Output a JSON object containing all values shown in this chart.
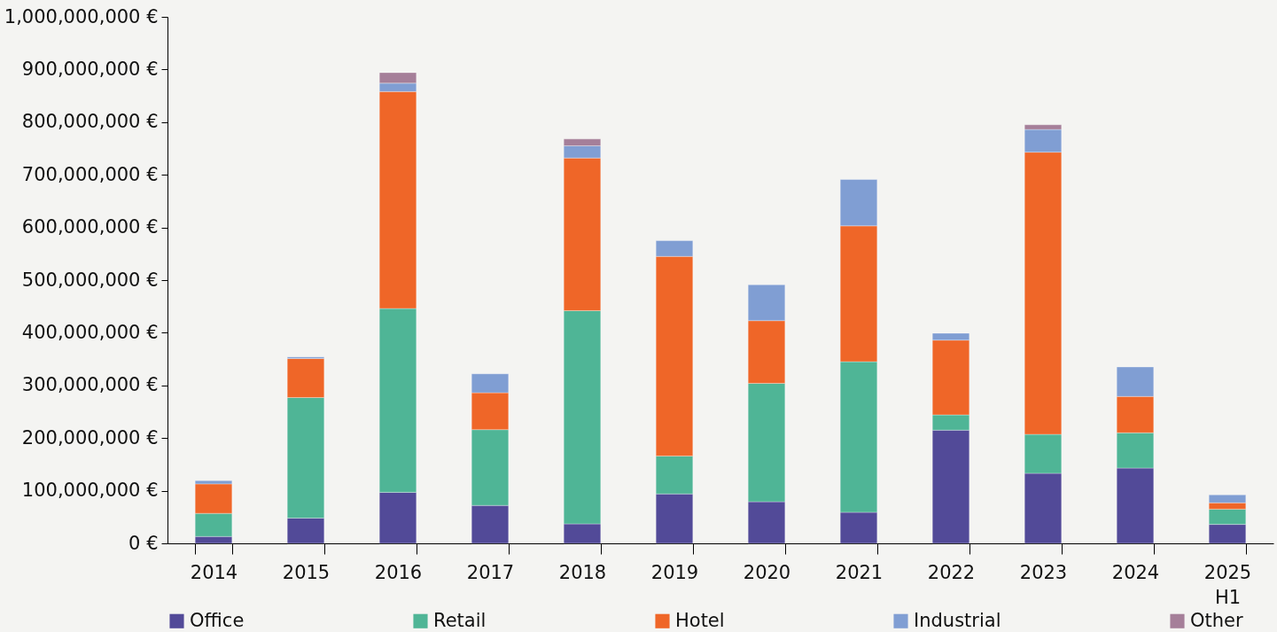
{
  "chart_data": {
    "type": "bar",
    "stacked": true,
    "categories": [
      "2014",
      "2015",
      "2016",
      "2017",
      "2018",
      "2019",
      "2020",
      "2021",
      "2022",
      "2023",
      "2024",
      "2025 H1"
    ],
    "series": [
      {
        "name": "Office",
        "color": "#524a98",
        "values": [
          13000000,
          48000000,
          97000000,
          72000000,
          37000000,
          94000000,
          79000000,
          59000000,
          215000000,
          133000000,
          143000000,
          36000000
        ]
      },
      {
        "name": "Retail",
        "color": "#4fb596",
        "values": [
          44000000,
          229000000,
          349000000,
          144000000,
          405000000,
          72000000,
          225000000,
          286000000,
          29000000,
          74000000,
          67000000,
          29000000
        ]
      },
      {
        "name": "Hotel",
        "color": "#ef6628",
        "values": [
          56000000,
          74000000,
          412000000,
          70000000,
          290000000,
          379000000,
          119000000,
          258000000,
          142000000,
          536000000,
          69000000,
          12000000
        ]
      },
      {
        "name": "Industrial",
        "color": "#809ed3",
        "values": [
          6000000,
          3000000,
          16000000,
          36000000,
          23000000,
          30000000,
          68000000,
          88000000,
          13000000,
          43000000,
          56000000,
          15000000
        ]
      },
      {
        "name": "Other",
        "color": "#a57f99",
        "values": [
          null,
          null,
          20000000,
          null,
          13000000,
          null,
          null,
          null,
          null,
          9000000,
          null,
          null
        ]
      }
    ],
    "ylim": [
      0,
      1000000000
    ],
    "yticks": [
      {
        "value": 0,
        "label": "0 €"
      },
      {
        "value": 100000000,
        "label": "100,000,000 €"
      },
      {
        "value": 200000000,
        "label": "200,000,000 €"
      },
      {
        "value": 300000000,
        "label": "300,000,000 €"
      },
      {
        "value": 400000000,
        "label": "400,000,000 €"
      },
      {
        "value": 500000000,
        "label": "500,000,000 €"
      },
      {
        "value": 600000000,
        "label": "600,000,000 €"
      },
      {
        "value": 700000000,
        "label": "700,000,000 €"
      },
      {
        "value": 800000000,
        "label": "800,000,000 €"
      },
      {
        "value": 900000000,
        "label": "900,000,000 €"
      },
      {
        "value": 1000000000,
        "label": "1,000,000,000 €"
      }
    ],
    "legend": "bottom"
  }
}
